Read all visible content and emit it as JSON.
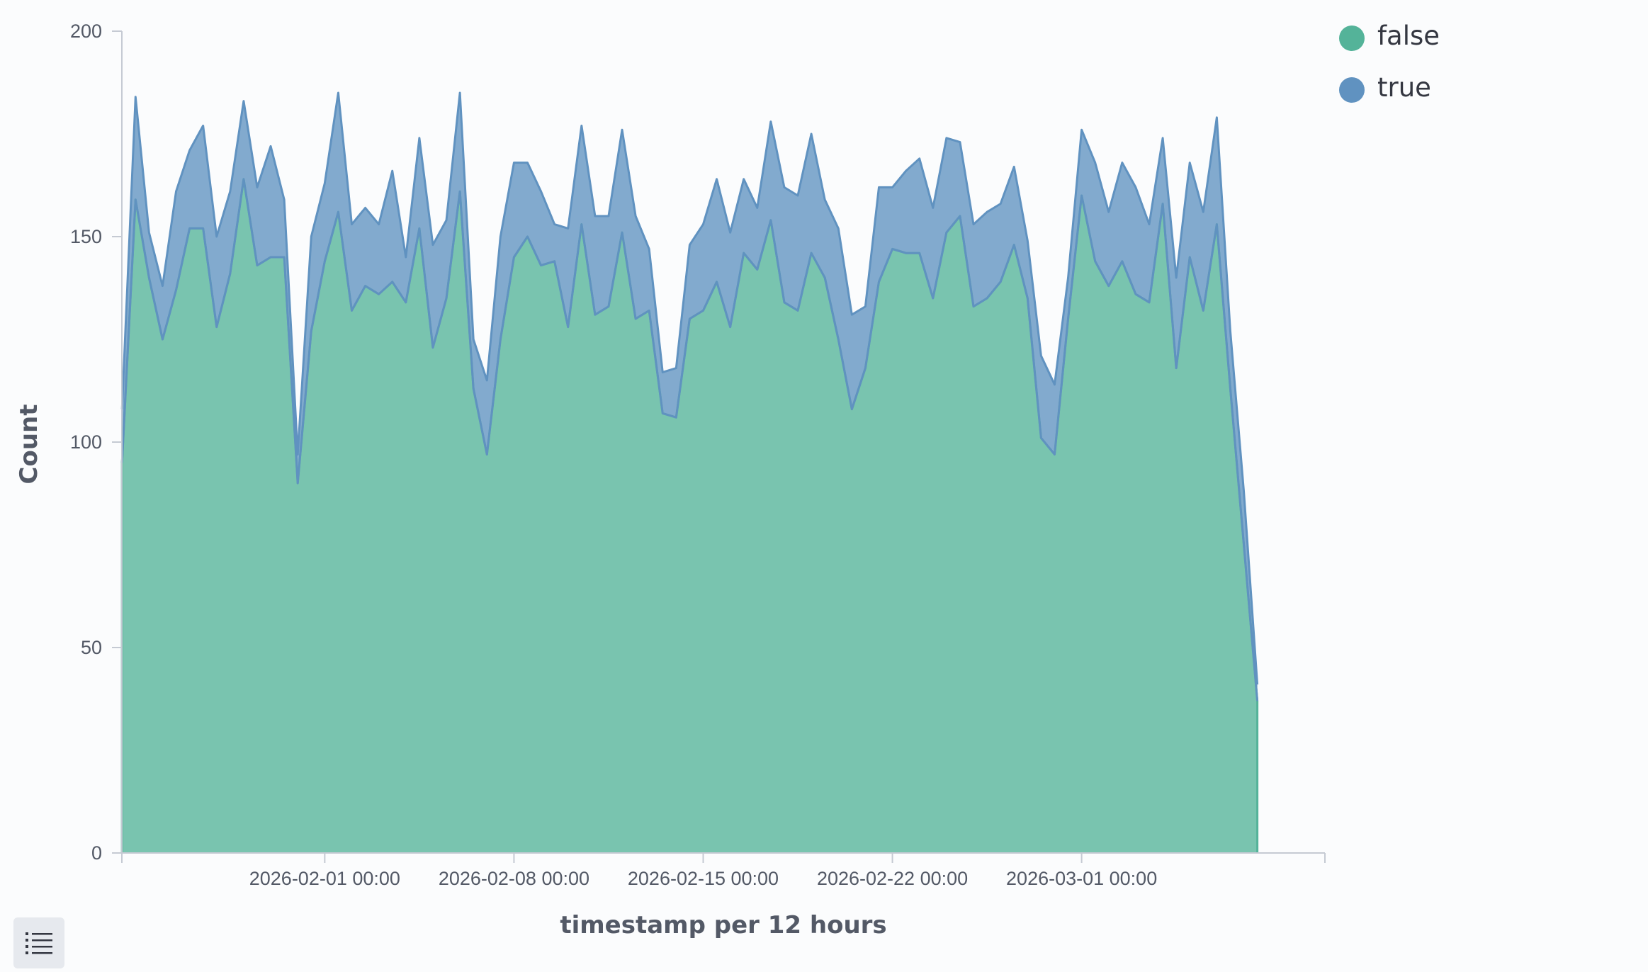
{
  "legend": {
    "items": [
      {
        "label": "false",
        "color": "#54b399"
      },
      {
        "label": "true",
        "color": "#6092c0"
      }
    ]
  },
  "legend_toggle": {
    "icon": "list-icon"
  },
  "chart_data": {
    "type": "area",
    "stacked": true,
    "title": "",
    "xlabel": "timestamp per 12 hours",
    "ylabel": "Count",
    "ylim": [
      0,
      200
    ],
    "yticks": [
      0,
      50,
      100,
      150,
      200
    ],
    "xticks": [
      "2026-02-01 00:00",
      "2026-02-08 00:00",
      "2026-02-15 00:00",
      "2026-02-22 00:00",
      "2026-03-01 00:00"
    ],
    "x_start": "2026-01-24 12:00",
    "x_interval_hours": 12,
    "x_domain_end": "2026-03-10 00:00",
    "legend_position": "top-right",
    "series": [
      {
        "name": "false",
        "color": "#54b399",
        "values": [
          95,
          159,
          140,
          125,
          137,
          152,
          152,
          128,
          141,
          164,
          143,
          145,
          145,
          90,
          127,
          144,
          156,
          132,
          138,
          136,
          139,
          134,
          152,
          123,
          135,
          161,
          113,
          97,
          125,
          145,
          150,
          143,
          144,
          128,
          153,
          131,
          133,
          151,
          130,
          132,
          107,
          106,
          130,
          132,
          139,
          128,
          146,
          142,
          154,
          134,
          132,
          146,
          140,
          125,
          108,
          118,
          139,
          147,
          146,
          146,
          135,
          151,
          155,
          133,
          135,
          139,
          148,
          135,
          101,
          97,
          130,
          160,
          144,
          138,
          144,
          136,
          134,
          158,
          118,
          145,
          132,
          153,
          113,
          75,
          37
        ]
      },
      {
        "name": "true",
        "color": "#6092c0",
        "values": [
          13,
          25,
          11,
          13,
          24,
          19,
          25,
          22,
          20,
          19,
          19,
          27,
          14,
          7,
          23,
          19,
          29,
          21,
          19,
          17,
          27,
          11,
          22,
          25,
          19,
          24,
          12,
          18,
          25,
          23,
          18,
          18,
          9,
          24,
          24,
          24,
          22,
          25,
          25,
          15,
          10,
          12,
          18,
          21,
          25,
          23,
          18,
          15,
          24,
          28,
          28,
          29,
          19,
          27,
          23,
          15,
          23,
          15,
          20,
          23,
          22,
          23,
          18,
          20,
          21,
          19,
          19,
          14,
          20,
          17,
          10,
          16,
          24,
          18,
          24,
          26,
          19,
          16,
          22,
          23,
          24,
          26,
          14,
          13,
          4
        ]
      }
    ]
  }
}
